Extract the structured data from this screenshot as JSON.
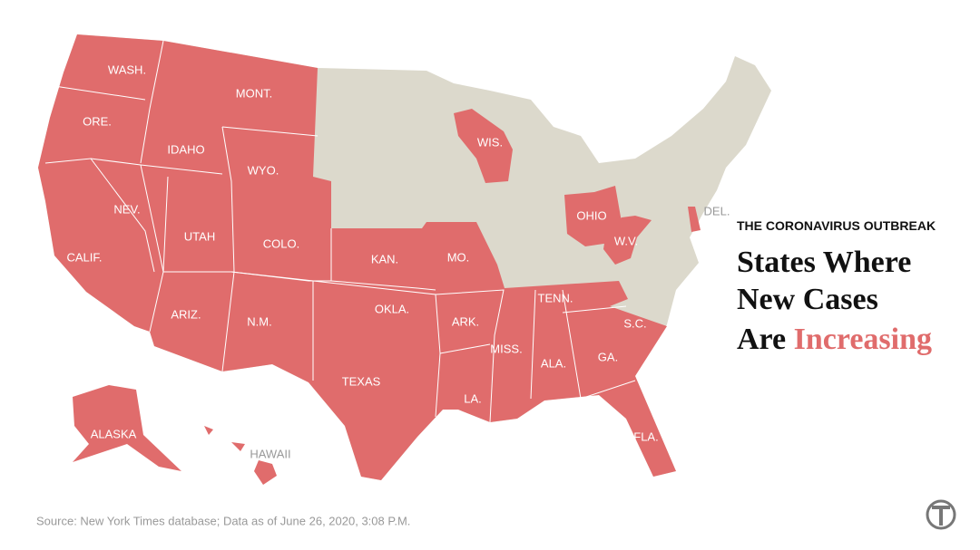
{
  "kicker": "THE CORONAVIRUS OUTBREAK",
  "title": {
    "line1": "States Where",
    "line2": "New Cases",
    "line3_prefix": "Are",
    "line3_highlight": "Increasing"
  },
  "highlight_color": "#e06c6c",
  "base_color": "#dcd9cc",
  "state_labels": [
    "WASH.",
    "ORE.",
    "CALIF.",
    "IDAHO",
    "MONT.",
    "WYO.",
    "NEV.",
    "UTAH",
    "COLO.",
    "ARIZ.",
    "N.M.",
    "TEXAS",
    "OKLA.",
    "KAN.",
    "MO.",
    "ARK.",
    "LA.",
    "MISS.",
    "ALA.",
    "GA.",
    "FLA.",
    "S.C.",
    "TENN.",
    "WIS.",
    "OHIO",
    "W.V.",
    "DEL.",
    "ALASKA",
    "HAWAII"
  ],
  "source": "Source: New York Times database; Data as of June 26, 2020, 3:08 P.M."
}
